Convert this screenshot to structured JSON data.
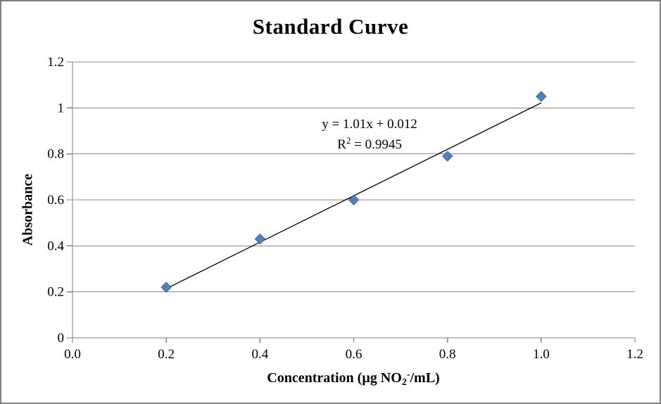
{
  "chart_data": {
    "type": "scatter",
    "title": "Standard Curve",
    "ylabel": "Absorbance",
    "xlabel_plain": "Concentration (µg NO2-/mL)",
    "xlabel_parts": {
      "pre": "Concentration (µg NO",
      "sub": "2",
      "sup": "-",
      "post": "/mL)"
    },
    "x": [
      0.2,
      0.4,
      0.6,
      0.8,
      1.0
    ],
    "y": [
      0.22,
      0.43,
      0.6,
      0.79,
      1.05
    ],
    "xlim": [
      0,
      1.2
    ],
    "ylim": [
      0,
      1.2
    ],
    "xtick_values": [
      0,
      0.2,
      0.4,
      0.6,
      0.8,
      1.0,
      1.2
    ],
    "xtick_labels": [
      "0.0",
      "0.2",
      "0.4",
      "0.6",
      "0.8",
      "1.0",
      "1.2"
    ],
    "ytick_values": [
      0,
      0.2,
      0.4,
      0.6,
      0.8,
      1.0,
      1.2
    ],
    "ytick_labels": [
      "0",
      "0.2",
      "0.4",
      "0.6",
      "0.8",
      "1",
      "1.2"
    ],
    "grid": "horizontal-only",
    "legend": "none",
    "trendline": {
      "slope": 1.01,
      "intercept": 0.012,
      "x_start": 0.2,
      "x_end": 1.0
    },
    "annotation": {
      "equation": "y = 1.01x + 0.012",
      "r2_base": "R",
      "r2_exponent": "2",
      "r2_value": " = 0.9945"
    },
    "marker": {
      "shape": "diamond",
      "fill": "#4F81BD",
      "stroke": "#38639D",
      "size": 14
    },
    "colors": {
      "axis": "#808080",
      "gridline": "#8C8C8C",
      "trendline": "#000000",
      "text": "#000000",
      "frame": "#808080",
      "background": "#FFFFFF"
    }
  }
}
